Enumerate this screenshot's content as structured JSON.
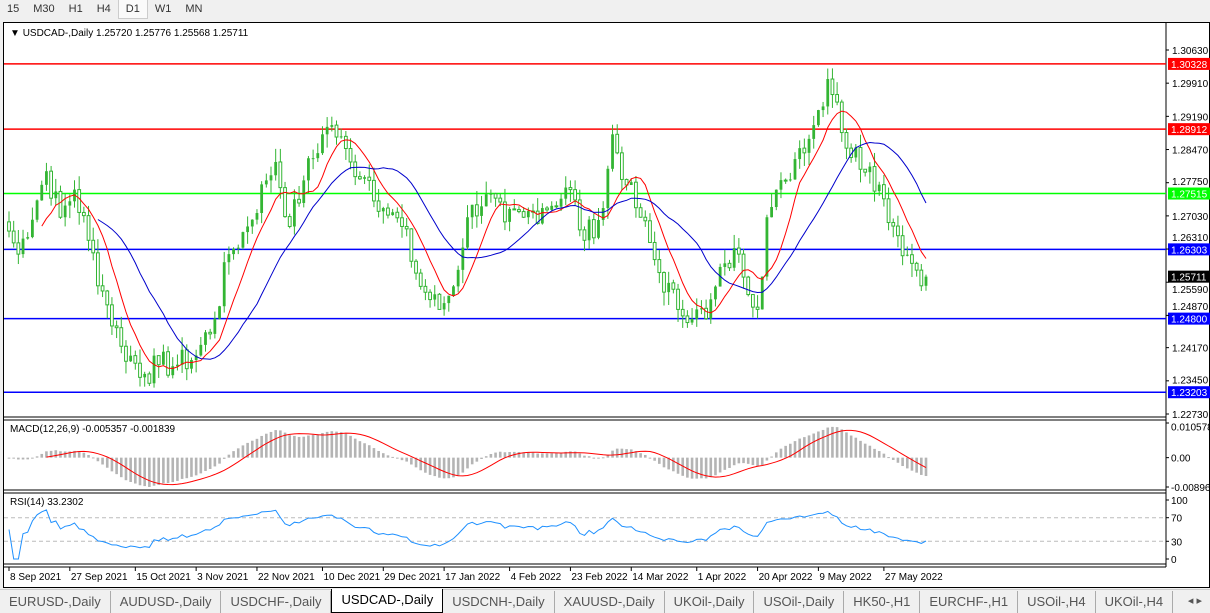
{
  "timeframes": [
    {
      "label": "15"
    },
    {
      "label": "M30"
    },
    {
      "label": "H1"
    },
    {
      "label": "H4"
    },
    {
      "label": "D1",
      "active": true
    },
    {
      "label": "W1"
    },
    {
      "label": "MN"
    }
  ],
  "chart": {
    "symbol": "USDCAD-,Daily",
    "ohlc": "1.25720 1.25776 1.25568 1.25711",
    "macd_label": "MACD(12,26,9) -0.005357 -0.001839",
    "rsi_label": "RSI(14) 33.2302"
  },
  "colors": {
    "up": "#33b533",
    "down": "#33b533",
    "ma_fast": "#ff0000",
    "ma_slow": "#0000cc",
    "macd_hist": "#b4b4b4",
    "macd_signal": "#ff0000",
    "rsi": "#1e90ff"
  },
  "chart_data": {
    "type": "candlestick",
    "price_axis": {
      "ylim": [
        1.2273,
        1.3063
      ],
      "ticks": [
        "1.30630",
        "1.29910",
        "1.29190",
        "1.28470",
        "1.27750",
        "1.27030",
        "1.26310",
        "1.25590",
        "1.24870",
        "1.24170",
        "1.23450",
        "1.22730"
      ]
    },
    "current_price": "1.25711",
    "levels": [
      {
        "value": "1.30328",
        "color": "#ff0000"
      },
      {
        "value": "1.28912",
        "color": "#ff0000"
      },
      {
        "value": "1.27515",
        "color": "#00ff00"
      },
      {
        "value": "1.26303",
        "color": "#0000ff"
      },
      {
        "value": "1.24800",
        "color": "#0000ff"
      },
      {
        "value": "1.23203",
        "color": "#0000ff"
      }
    ],
    "close_path": [
      [
        "2021-09-08",
        1.267
      ],
      [
        "2021-09-10",
        1.262
      ],
      [
        "2021-09-20",
        1.28
      ],
      [
        "2021-09-23",
        1.27
      ],
      [
        "2021-09-28",
        1.276
      ],
      [
        "2021-10-01",
        1.265
      ],
      [
        "2021-10-06",
        1.254
      ],
      [
        "2021-10-12",
        1.242
      ],
      [
        "2021-10-19",
        1.236
      ],
      [
        "2021-10-22",
        1.238
      ],
      [
        "2021-10-28",
        1.238
      ],
      [
        "2021-11-03",
        1.24
      ],
      [
        "2021-11-09",
        1.248
      ],
      [
        "2021-11-12",
        1.262
      ],
      [
        "2021-11-18",
        1.268
      ],
      [
        "2021-11-24",
        1.278
      ],
      [
        "2021-11-26",
        1.282
      ],
      [
        "2021-12-01",
        1.268
      ],
      [
        "2021-12-06",
        1.278
      ],
      [
        "2021-12-10",
        1.288
      ],
      [
        "2021-12-14",
        1.29
      ],
      [
        "2021-12-20",
        1.282
      ],
      [
        "2021-12-24",
        1.278
      ],
      [
        "2021-12-29",
        1.272
      ],
      [
        "2022-01-04",
        1.268
      ],
      [
        "2022-01-10",
        1.255
      ],
      [
        "2022-01-14",
        1.25
      ],
      [
        "2022-01-19",
        1.255
      ],
      [
        "2022-01-24",
        1.27
      ],
      [
        "2022-01-28",
        1.275
      ],
      [
        "2022-02-03",
        1.269
      ],
      [
        "2022-02-09",
        1.27
      ],
      [
        "2022-02-15",
        1.272
      ],
      [
        "2022-02-23",
        1.276
      ],
      [
        "2022-02-28",
        1.265
      ],
      [
        "2022-03-04",
        1.272
      ],
      [
        "2022-03-08",
        1.288
      ],
      [
        "2022-03-11",
        1.277
      ],
      [
        "2022-03-16",
        1.27
      ],
      [
        "2022-03-22",
        1.258
      ],
      [
        "2022-03-28",
        1.25
      ],
      [
        "2022-04-01",
        1.25
      ],
      [
        "2022-04-05",
        1.248
      ],
      [
        "2022-04-11",
        1.26
      ],
      [
        "2022-04-14",
        1.262
      ],
      [
        "2022-04-20",
        1.25
      ],
      [
        "2022-04-22",
        1.27
      ],
      [
        "2022-04-28",
        1.278
      ],
      [
        "2022-05-03",
        1.285
      ],
      [
        "2022-05-06",
        1.29
      ],
      [
        "2022-05-11",
        1.3
      ],
      [
        "2022-05-13",
        1.295
      ],
      [
        "2022-05-17",
        1.285
      ],
      [
        "2022-05-24",
        1.281
      ],
      [
        "2022-05-27",
        1.274
      ],
      [
        "2022-06-01",
        1.266
      ],
      [
        "2022-06-06",
        1.26
      ],
      [
        "2022-06-09",
        1.25711
      ]
    ],
    "macd_axis": {
      "ticks": [
        "0.010578",
        "0.00",
        "-0.00896"
      ]
    },
    "rsi_axis": {
      "ticks": [
        "100",
        "70",
        "30",
        "0"
      ]
    },
    "time_labels": [
      [
        "2021-09-08",
        "8 Sep 2021"
      ],
      [
        "2021-09-27",
        "27 Sep 2021"
      ],
      [
        "2021-10-15",
        "15 Oct 2021"
      ],
      [
        "2021-11-03",
        "3 Nov 2021"
      ],
      [
        "2021-11-22",
        "22 Nov 2021"
      ],
      [
        "2021-12-10",
        "10 Dec 2021"
      ],
      [
        "2021-12-29",
        "29 Dec 2021"
      ],
      [
        "2022-01-17",
        "17 Jan 2022"
      ],
      [
        "2022-02-04",
        "4 Feb 2022"
      ],
      [
        "2022-02-23",
        "23 Feb 2022"
      ],
      [
        "2022-03-14",
        "14 Mar 2022"
      ],
      [
        "2022-04-01",
        "1 Apr 2022"
      ],
      [
        "2022-04-20",
        "20 Apr 2022"
      ],
      [
        "2022-05-09",
        "9 May 2022"
      ],
      [
        "2022-05-27",
        "27 May 2022"
      ]
    ]
  },
  "tabs": [
    {
      "label": "EURUSD-,Daily"
    },
    {
      "label": "AUDUSD-,Daily"
    },
    {
      "label": "USDCHF-,Daily"
    },
    {
      "label": "USDCAD-,Daily",
      "active": true
    },
    {
      "label": "USDCNH-,Daily"
    },
    {
      "label": "XAUUSD-,Daily"
    },
    {
      "label": "UKOil-,Daily"
    },
    {
      "label": "USOil-,Daily"
    },
    {
      "label": "HK50-,H1"
    },
    {
      "label": "EURCHF-,H1"
    },
    {
      "label": "USOil-,H4"
    },
    {
      "label": "UKOil-,H4"
    }
  ],
  "tab_nav": "◂ ▸"
}
